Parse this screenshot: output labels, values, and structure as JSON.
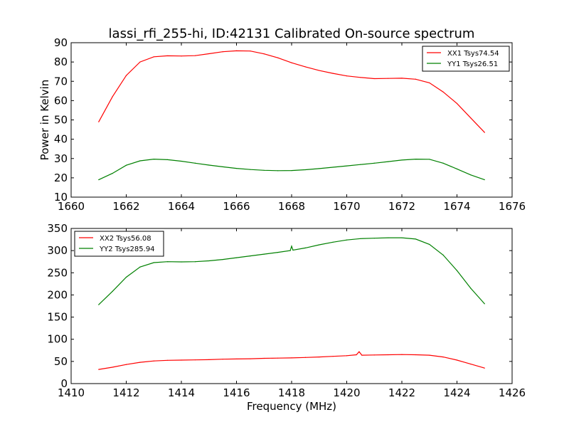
{
  "figure": {
    "title": "lassi_rfi_255-hi, ID:42131 Calibrated On-source spectrum"
  },
  "chart_data": [
    {
      "type": "line",
      "ylabel": "Power in Kelvin",
      "xlabel": "",
      "xlim": [
        1660,
        1676
      ],
      "ylim": [
        10,
        90
      ],
      "xticks": [
        1660,
        1662,
        1664,
        1666,
        1668,
        1670,
        1672,
        1674,
        1676
      ],
      "yticks": [
        10,
        20,
        30,
        40,
        50,
        60,
        70,
        80,
        90
      ],
      "legend_position": "top-right",
      "series": [
        {
          "name": "XX1 Tsys74.54",
          "color": "#ff0000",
          "x": [
            1661.0,
            1661.5,
            1662.0,
            1662.5,
            1663.0,
            1663.5,
            1664.0,
            1664.5,
            1665.0,
            1665.5,
            1666.0,
            1666.5,
            1667.0,
            1667.5,
            1668.0,
            1668.5,
            1669.0,
            1669.5,
            1670.0,
            1670.5,
            1671.0,
            1671.5,
            1672.0,
            1672.5,
            1673.0,
            1673.5,
            1674.0,
            1674.5,
            1675.0
          ],
          "y": [
            49,
            62,
            73,
            80,
            82.7,
            83.2,
            83.1,
            83.3,
            84.3,
            85.3,
            85.8,
            85.7,
            84.2,
            82.2,
            79.6,
            77.5,
            75.6,
            74.1,
            72.8,
            72.0,
            71.4,
            71.5,
            71.6,
            71.1,
            69.2,
            64.5,
            58.5,
            51.0,
            43.5
          ]
        },
        {
          "name": "YY1 Tsys26.51",
          "color": "#008000",
          "x": [
            1661.0,
            1661.5,
            1662.0,
            1662.5,
            1663.0,
            1663.5,
            1664.0,
            1664.5,
            1665.0,
            1665.5,
            1666.0,
            1666.5,
            1667.0,
            1667.5,
            1668.0,
            1668.5,
            1669.0,
            1669.5,
            1670.0,
            1670.5,
            1671.0,
            1671.5,
            1672.0,
            1672.5,
            1673.0,
            1673.5,
            1674.0,
            1674.5,
            1675.0
          ],
          "y": [
            19,
            22.3,
            26.5,
            28.8,
            29.7,
            29.4,
            28.6,
            27.6,
            26.6,
            25.7,
            24.9,
            24.3,
            23.9,
            23.7,
            23.8,
            24.2,
            24.8,
            25.5,
            26.2,
            26.9,
            27.6,
            28.4,
            29.2,
            29.7,
            29.6,
            27.6,
            24.6,
            21.5,
            19
          ]
        }
      ]
    },
    {
      "type": "line",
      "xlabel": "Frequency (MHz)",
      "ylabel": "",
      "xlim": [
        1410,
        1426
      ],
      "ylim": [
        0,
        350
      ],
      "xticks": [
        1410,
        1412,
        1414,
        1416,
        1418,
        1420,
        1422,
        1424,
        1426
      ],
      "yticks": [
        0,
        50,
        100,
        150,
        200,
        250,
        300,
        350
      ],
      "legend_position": "top-left",
      "series": [
        {
          "name": "XX2 Tsys56.08",
          "color": "#ff0000",
          "x": [
            1411.0,
            1411.5,
            1412.0,
            1412.5,
            1413.0,
            1413.5,
            1414.0,
            1414.5,
            1415.0,
            1415.5,
            1416.0,
            1416.5,
            1417.0,
            1417.5,
            1418.0,
            1418.5,
            1419.0,
            1419.5,
            1420.0,
            1420.35,
            1420.45,
            1420.55,
            1421.0,
            1421.5,
            1422.0,
            1422.5,
            1423.0,
            1423.5,
            1424.0,
            1424.5,
            1425.0
          ],
          "y": [
            32,
            37,
            43,
            48,
            51,
            52.5,
            53,
            53.5,
            54,
            55,
            55.5,
            56,
            57,
            57.5,
            58,
            59,
            60,
            61.5,
            63,
            65,
            72,
            64,
            64.5,
            65,
            65.5,
            65,
            64,
            60,
            53,
            44,
            35
          ]
        },
        {
          "name": "YY2 Tsys285.94",
          "color": "#008000",
          "x": [
            1411.0,
            1411.5,
            1412.0,
            1412.5,
            1413.0,
            1413.5,
            1414.0,
            1414.5,
            1415.0,
            1415.5,
            1416.0,
            1416.5,
            1417.0,
            1417.5,
            1417.95,
            1418.0,
            1418.05,
            1418.5,
            1419.0,
            1419.5,
            1420.0,
            1420.5,
            1421.0,
            1421.5,
            1422.0,
            1422.5,
            1423.0,
            1423.5,
            1424.0,
            1424.5,
            1425.0
          ],
          "y": [
            178,
            208,
            240,
            263,
            273,
            275,
            274.5,
            275,
            277,
            280,
            284,
            288,
            292,
            296,
            300,
            310,
            301,
            306,
            313,
            319,
            324,
            327,
            328,
            329,
            329,
            326,
            314,
            290,
            255,
            215,
            180
          ]
        }
      ]
    }
  ]
}
